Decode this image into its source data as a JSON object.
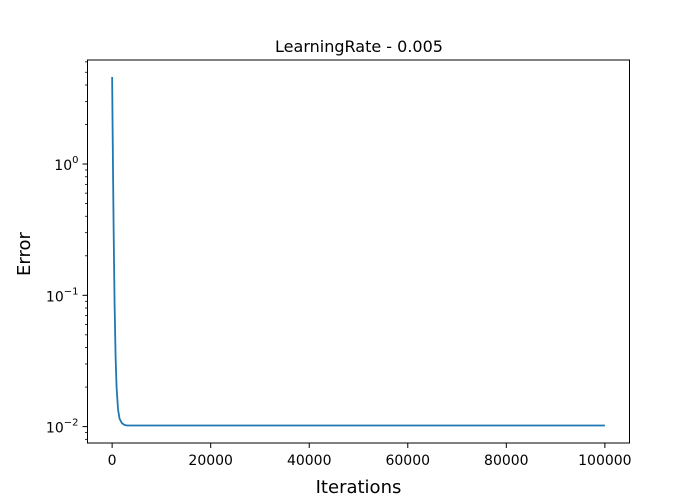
{
  "chart_data": {
    "type": "line",
    "title": "LearningRate - 0.005",
    "xlabel": "Iterations",
    "ylabel": "Error",
    "y_scale": "log",
    "xlim": [
      -5000,
      105000
    ],
    "ylim": [
      0.0075,
      6.2
    ],
    "x_ticks": [
      {
        "value": 0,
        "label": "0"
      },
      {
        "value": 20000,
        "label": "20000"
      },
      {
        "value": 40000,
        "label": "40000"
      },
      {
        "value": 60000,
        "label": "60000"
      },
      {
        "value": 80000,
        "label": "80000"
      },
      {
        "value": 100000,
        "label": "100000"
      }
    ],
    "y_ticks": [
      {
        "value": 0.01,
        "base": "10",
        "exp": "−2"
      },
      {
        "value": 0.1,
        "base": "10",
        "exp": "−1"
      },
      {
        "value": 1,
        "base": "10",
        "exp": "0"
      }
    ],
    "grid": false,
    "legend": "none",
    "series": [
      {
        "color": "#1f77b4",
        "x": [
          0,
          100,
          200,
          300,
          400,
          500,
          700,
          900,
          1200,
          1500,
          2000,
          2500,
          3000,
          4000,
          6000,
          10000,
          20000,
          40000,
          60000,
          80000,
          100000
        ],
        "y": [
          4.6,
          1.8,
          0.75,
          0.33,
          0.16,
          0.085,
          0.034,
          0.02,
          0.0135,
          0.0115,
          0.0106,
          0.0103,
          0.0102,
          0.0102,
          0.0102,
          0.0102,
          0.0102,
          0.0102,
          0.0102,
          0.0102,
          0.0102
        ]
      }
    ]
  }
}
